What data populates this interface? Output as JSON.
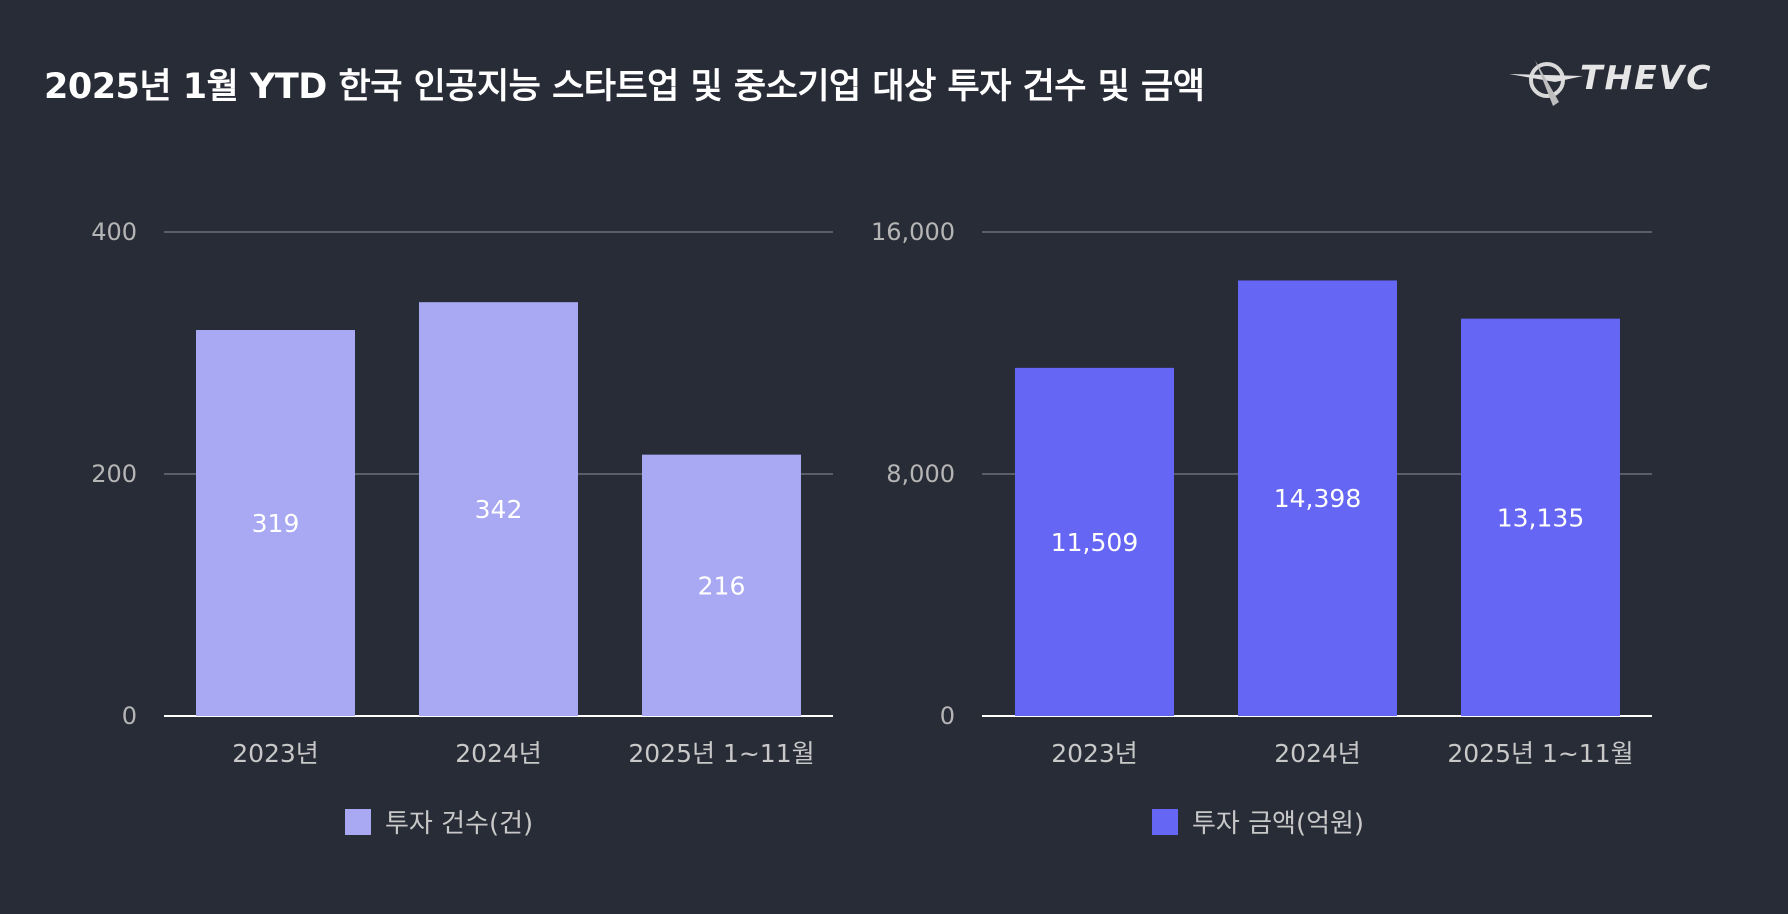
{
  "title": "2025년 1월 YTD 한국 인공지능 스타트업 및 중소기업 대상 투자 건수 및 금액",
  "logo": {
    "text": "THEVC"
  },
  "colors": {
    "background": "#282c37",
    "left_bar": "#a8a8f3",
    "right_bar": "#6566f3",
    "grid": "#8a8f99",
    "axis": "#ffffff"
  },
  "chart_data": [
    {
      "type": "bar",
      "title": "",
      "categories": [
        "2023년",
        "2024년",
        "2025년 1~11월"
      ],
      "series": [
        {
          "name": "투자 건수(건)",
          "values": [
            319,
            342,
            216
          ]
        }
      ],
      "value_labels": [
        "319",
        "342",
        "216"
      ],
      "ylim": [
        0,
        400
      ],
      "yticks": [
        0,
        200,
        400
      ],
      "ytick_labels": [
        "0",
        "200",
        "400"
      ],
      "grid": true,
      "legend": "bottom",
      "xlabel": "",
      "ylabel": ""
    },
    {
      "type": "bar",
      "title": "",
      "categories": [
        "2023년",
        "2024년",
        "2025년 1~11월"
      ],
      "series": [
        {
          "name": "투자 금액(억원)",
          "values": [
            11509,
            14398,
            13135
          ]
        }
      ],
      "value_labels": [
        "11,509",
        "14,398",
        "13,135"
      ],
      "ylim": [
        0,
        16000
      ],
      "yticks": [
        0,
        8000,
        16000
      ],
      "ytick_labels": [
        "0",
        "8,000",
        "16,000"
      ],
      "grid": true,
      "legend": "bottom",
      "xlabel": "",
      "ylabel": ""
    }
  ]
}
